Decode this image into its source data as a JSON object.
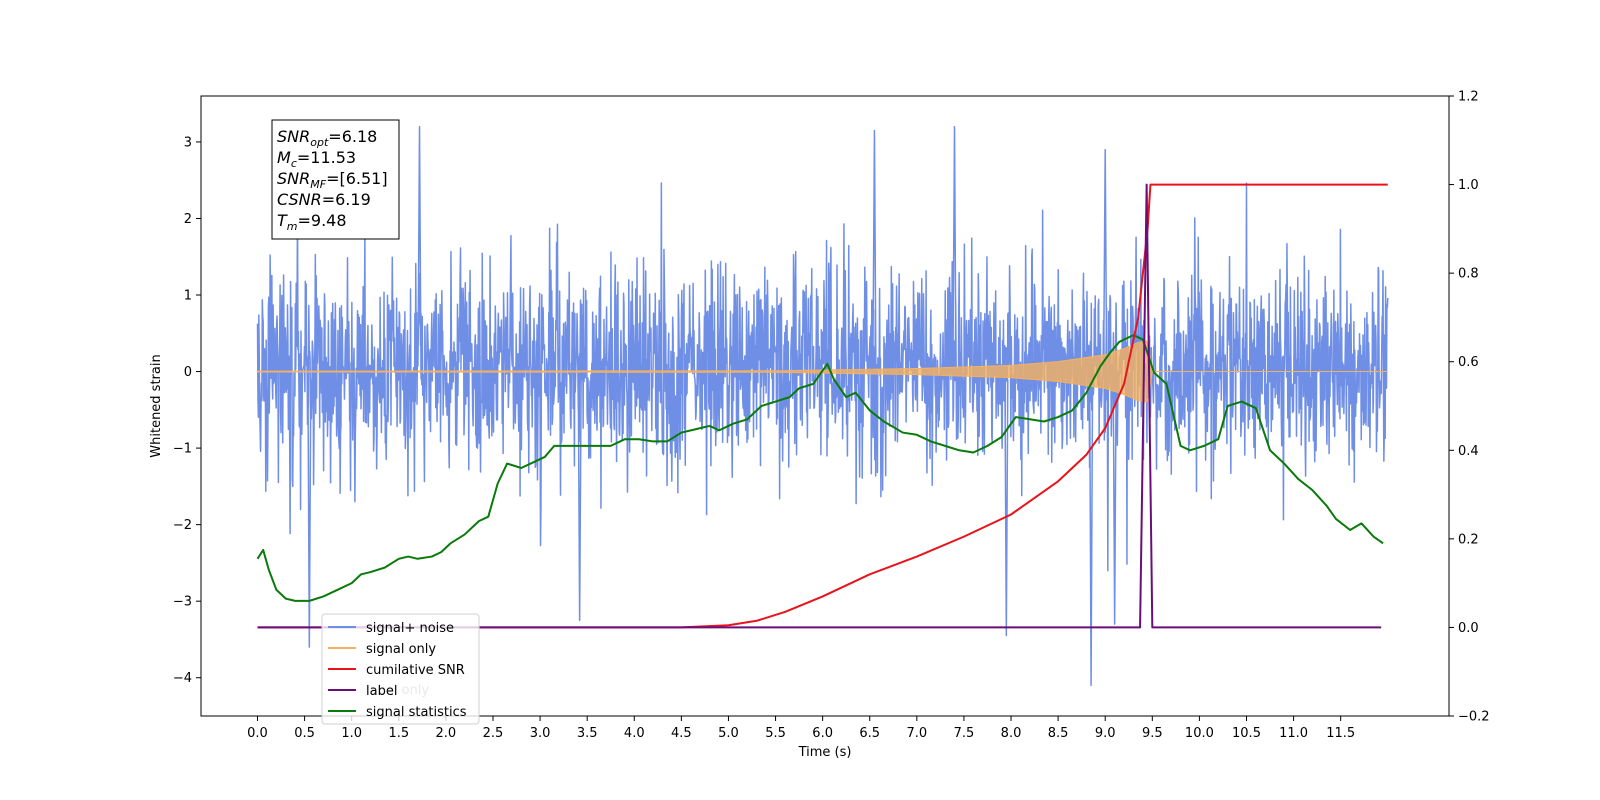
{
  "chart_data": {
    "type": "line",
    "xlabel": "Time (s)",
    "ylabel_left": "Whitened strain",
    "ylabel_right": "",
    "xlim": [
      -0.6,
      12.65
    ],
    "ylim_left": [
      -4.5,
      3.6
    ],
    "ylim_right": [
      -0.2,
      1.2
    ],
    "x_ticks": [
      0.0,
      0.5,
      1.0,
      1.5,
      2.0,
      2.5,
      3.0,
      3.5,
      4.0,
      4.5,
      5.0,
      5.5,
      6.0,
      6.5,
      7.0,
      7.5,
      8.0,
      8.5,
      9.0,
      9.5,
      10.0,
      10.5,
      11.0,
      11.5
    ],
    "x_tick_labels": [
      "0.0",
      "0.5",
      "1.0",
      "1.5",
      "2.0",
      "2.5",
      "3.0",
      "3.5",
      "4.0",
      "4.5",
      "5.0",
      "5.5",
      "6.0",
      "6.5",
      "7.0",
      "7.5",
      "8.0",
      "8.5",
      "9.0",
      "9.5",
      "10.0",
      "10.5",
      "11.0",
      "11.5"
    ],
    "y_left_ticks": [
      -4,
      -3,
      -2,
      -1,
      0,
      1,
      2,
      3
    ],
    "y_left_tick_labels": [
      "−4",
      "−3",
      "−2",
      "−1",
      "0",
      "1",
      "2",
      "3"
    ],
    "y_right_ticks": [
      -0.2,
      0.0,
      0.2,
      0.4,
      0.6,
      0.8,
      1.0,
      1.2
    ],
    "y_right_tick_labels": [
      "−0.2",
      "0.0",
      "0.2",
      "0.4",
      "0.6",
      "0.8",
      "1.0",
      "1.2"
    ],
    "grid": false,
    "legend_position": "lower-left",
    "colors": {
      "signal_noise": "#6f8fe6",
      "signal_only": "#f5b060",
      "cumulative_snr": "#e8131b",
      "label": "#6a0f7a",
      "signal_statistics": "#0a7a0a"
    },
    "series": [
      {
        "name": "signal+ noise",
        "axis": "left",
        "x_range": [
          0.0,
          12.0
        ],
        "typical_band": [
          -1.2,
          1.3
        ],
        "notable_peaks": [
          {
            "x": 1.72,
            "y": 3.2
          },
          {
            "x": 6.55,
            "y": 3.15
          },
          {
            "x": 7.4,
            "y": 3.2
          },
          {
            "x": 9.0,
            "y": 2.9
          },
          {
            "x": 0.55,
            "y": -3.6
          },
          {
            "x": 3.42,
            "y": -3.25
          },
          {
            "x": 7.95,
            "y": -3.45
          },
          {
            "x": 8.85,
            "y": -4.1
          },
          {
            "x": 9.1,
            "y": -3.3
          }
        ]
      },
      {
        "name": "signal only",
        "axis": "left",
        "x": [
          0.0,
          5.5,
          6.0,
          7.0,
          8.0,
          8.5,
          9.0,
          9.2,
          9.35,
          9.45,
          9.5,
          12.0
        ],
        "envelope": [
          0.005,
          0.01,
          0.02,
          0.04,
          0.08,
          0.13,
          0.22,
          0.3,
          0.38,
          0.4,
          0.0,
          0.0
        ]
      },
      {
        "name": "cumilative SNR",
        "axis": "right",
        "x": [
          0.0,
          4.5,
          5.0,
          5.3,
          5.6,
          6.0,
          6.5,
          7.0,
          7.5,
          8.0,
          8.5,
          8.8,
          9.0,
          9.2,
          9.35,
          9.45,
          9.48,
          12.0
        ],
        "y": [
          0.0,
          0.0,
          0.005,
          0.015,
          0.035,
          0.07,
          0.12,
          0.16,
          0.205,
          0.255,
          0.33,
          0.39,
          0.45,
          0.55,
          0.7,
          0.9,
          1.0,
          1.0
        ]
      },
      {
        "name": "label",
        "axis": "right",
        "x": [
          0.0,
          9.37,
          9.44,
          9.5,
          11.93
        ],
        "y": [
          0.0,
          0.0,
          1.0,
          0.0,
          0.0
        ]
      },
      {
        "name": "signal statistics",
        "axis": "right",
        "x": [
          0.0,
          0.06,
          0.12,
          0.2,
          0.3,
          0.4,
          0.55,
          0.7,
          0.85,
          1.0,
          1.1,
          1.2,
          1.35,
          1.5,
          1.6,
          1.7,
          1.85,
          1.95,
          2.05,
          2.2,
          2.35,
          2.45,
          2.55,
          2.65,
          2.8,
          2.9,
          3.05,
          3.15,
          3.3,
          3.45,
          3.6,
          3.75,
          3.9,
          4.05,
          4.2,
          4.35,
          4.5,
          4.6,
          4.7,
          4.8,
          4.9,
          5.05,
          5.2,
          5.35,
          5.5,
          5.65,
          5.75,
          5.9,
          6.05,
          6.12,
          6.25,
          6.35,
          6.5,
          6.65,
          6.85,
          7.0,
          7.15,
          7.3,
          7.45,
          7.6,
          7.75,
          7.9,
          8.05,
          8.2,
          8.35,
          8.5,
          8.65,
          8.8,
          8.95,
          9.05,
          9.15,
          9.3,
          9.4,
          9.52,
          9.65,
          9.8,
          9.9,
          10.05,
          10.2,
          10.3,
          10.45,
          10.6,
          10.75,
          10.9,
          11.05,
          11.2,
          11.35,
          11.45,
          11.6,
          11.72,
          11.85,
          11.95
        ],
        "y": [
          0.155,
          0.175,
          0.13,
          0.085,
          0.065,
          0.06,
          0.06,
          0.07,
          0.085,
          0.1,
          0.12,
          0.125,
          0.135,
          0.155,
          0.16,
          0.155,
          0.16,
          0.17,
          0.19,
          0.21,
          0.24,
          0.25,
          0.325,
          0.37,
          0.36,
          0.37,
          0.385,
          0.41,
          0.41,
          0.41,
          0.41,
          0.41,
          0.425,
          0.425,
          0.42,
          0.42,
          0.44,
          0.445,
          0.45,
          0.455,
          0.445,
          0.46,
          0.47,
          0.5,
          0.51,
          0.52,
          0.54,
          0.55,
          0.595,
          0.56,
          0.52,
          0.53,
          0.49,
          0.465,
          0.44,
          0.435,
          0.42,
          0.41,
          0.4,
          0.395,
          0.41,
          0.43,
          0.475,
          0.47,
          0.465,
          0.475,
          0.49,
          0.53,
          0.59,
          0.62,
          0.645,
          0.66,
          0.65,
          0.575,
          0.55,
          0.41,
          0.4,
          0.41,
          0.425,
          0.5,
          0.51,
          0.495,
          0.4,
          0.37,
          0.335,
          0.31,
          0.275,
          0.245,
          0.22,
          0.235,
          0.205,
          0.19
        ]
      }
    ],
    "legend_entries": [
      "signal+ noise",
      "signal only",
      "cumilative SNR",
      "label",
      "signal statistics"
    ],
    "legend_overlap_text": "label only",
    "annotation": [
      {
        "base": "SNR",
        "sub": "opt",
        "value": "=6.18"
      },
      {
        "base": "M",
        "sub": "c",
        "value": "=11.53"
      },
      {
        "base": "SNR",
        "sub": "MF",
        "value": "=[6.51]"
      },
      {
        "base": "CSNR",
        "sub": "",
        "value": "=6.19"
      },
      {
        "base": "T",
        "sub": "m",
        "value": "=9.48"
      }
    ]
  }
}
